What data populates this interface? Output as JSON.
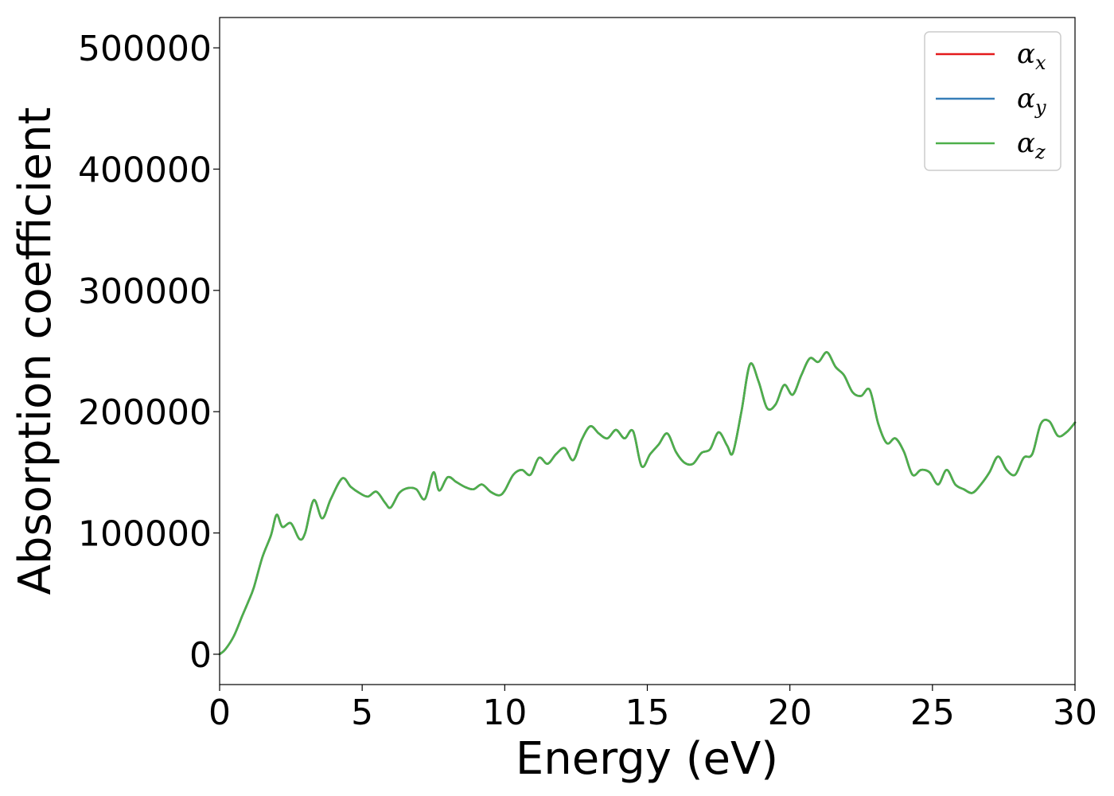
{
  "chart_data": {
    "type": "line",
    "xlabel": "Energy (eV)",
    "ylabel": "Absorption coefficient",
    "xlim": [
      0,
      30
    ],
    "ylim": [
      -25000,
      525000
    ],
    "xticks": [
      0,
      5,
      10,
      15,
      20,
      25,
      30
    ],
    "yticks": [
      0,
      100000,
      200000,
      300000,
      400000,
      500000
    ],
    "xtick_labels": [
      "0",
      "5",
      "10",
      "15",
      "20",
      "25",
      "30"
    ],
    "ytick_labels": [
      "0",
      "100000",
      "200000",
      "300000",
      "400000",
      "500000"
    ],
    "grid": false,
    "legend_position": "top-right",
    "x": [
      0,
      0.2,
      0.5,
      0.8,
      1.0,
      1.2,
      1.5,
      1.8,
      2.0,
      2.2,
      2.5,
      2.8,
      3.0,
      3.3,
      3.6,
      3.9,
      4.3,
      4.6,
      4.9,
      5.2,
      5.5,
      5.8,
      6.0,
      6.3,
      6.6,
      6.9,
      7.2,
      7.5,
      7.7,
      8.0,
      8.3,
      8.6,
      8.9,
      9.2,
      9.5,
      9.8,
      10.0,
      10.3,
      10.6,
      10.9,
      11.2,
      11.5,
      11.8,
      12.1,
      12.4,
      12.7,
      13.0,
      13.3,
      13.6,
      13.9,
      14.2,
      14.5,
      14.8,
      15.1,
      15.4,
      15.7,
      16.0,
      16.3,
      16.6,
      16.9,
      17.2,
      17.5,
      17.8,
      18.0,
      18.3,
      18.6,
      18.9,
      19.2,
      19.5,
      19.8,
      20.1,
      20.4,
      20.7,
      21.0,
      21.3,
      21.6,
      21.9,
      22.2,
      22.5,
      22.8,
      23.1,
      23.4,
      23.7,
      24.0,
      24.3,
      24.6,
      24.9,
      25.2,
      25.5,
      25.8,
      26.1,
      26.4,
      26.7,
      27.0,
      27.3,
      27.6,
      27.9,
      28.2,
      28.5,
      28.8,
      29.1,
      29.4,
      29.7,
      30.0
    ],
    "series": [
      {
        "name": "α",
        "subscript": "x",
        "color": "#e41a1c",
        "values": [
          0,
          4000,
          15000,
          32000,
          43000,
          55000,
          80000,
          98000,
          115000,
          105000,
          108000,
          95000,
          100000,
          127000,
          112000,
          128000,
          145000,
          138000,
          133000,
          130000,
          134000,
          125000,
          121000,
          133000,
          137000,
          136000,
          128000,
          150000,
          135000,
          146000,
          142000,
          138000,
          136000,
          140000,
          134000,
          131000,
          135000,
          148000,
          152000,
          148000,
          162000,
          157000,
          165000,
          170000,
          160000,
          177000,
          188000,
          182000,
          178000,
          185000,
          178000,
          184000,
          155000,
          165000,
          173000,
          182000,
          167000,
          158000,
          157000,
          166000,
          169000,
          183000,
          172000,
          166000,
          200000,
          239000,
          225000,
          203000,
          206000,
          222000,
          214000,
          230000,
          244000,
          241000,
          249000,
          237000,
          230000,
          216000,
          213000,
          218000,
          190000,
          174000,
          178000,
          167000,
          148000,
          152000,
          150000,
          140000,
          152000,
          140000,
          136000,
          133000,
          140000,
          150000,
          163000,
          152000,
          148000,
          162000,
          165000,
          190000,
          192000,
          180000,
          183000,
          191000
        ]
      },
      {
        "name": "α",
        "subscript": "y",
        "color": "#377eb8",
        "values": [
          0,
          4000,
          15000,
          32000,
          43000,
          55000,
          80000,
          98000,
          115000,
          105000,
          108000,
          95000,
          100000,
          127000,
          112000,
          128000,
          145000,
          138000,
          133000,
          130000,
          134000,
          125000,
          121000,
          133000,
          137000,
          136000,
          128000,
          150000,
          135000,
          146000,
          142000,
          138000,
          136000,
          140000,
          134000,
          131000,
          135000,
          148000,
          152000,
          148000,
          162000,
          157000,
          165000,
          170000,
          160000,
          177000,
          188000,
          182000,
          178000,
          185000,
          178000,
          184000,
          155000,
          165000,
          173000,
          182000,
          167000,
          158000,
          157000,
          166000,
          169000,
          183000,
          172000,
          166000,
          200000,
          239000,
          225000,
          203000,
          206000,
          222000,
          214000,
          230000,
          244000,
          241000,
          249000,
          237000,
          230000,
          216000,
          213000,
          218000,
          190000,
          174000,
          178000,
          167000,
          148000,
          152000,
          150000,
          140000,
          152000,
          140000,
          136000,
          133000,
          140000,
          150000,
          163000,
          152000,
          148000,
          162000,
          165000,
          190000,
          192000,
          180000,
          183000,
          191000
        ]
      },
      {
        "name": "α",
        "subscript": "z",
        "color": "#4daf4a",
        "values": [
          0,
          4000,
          15000,
          32000,
          43000,
          55000,
          80000,
          98000,
          115000,
          105000,
          108000,
          95000,
          100000,
          127000,
          112000,
          128000,
          145000,
          138000,
          133000,
          130000,
          134000,
          125000,
          121000,
          133000,
          137000,
          136000,
          128000,
          150000,
          135000,
          146000,
          142000,
          138000,
          136000,
          140000,
          134000,
          131000,
          135000,
          148000,
          152000,
          148000,
          162000,
          157000,
          165000,
          170000,
          160000,
          177000,
          188000,
          182000,
          178000,
          185000,
          178000,
          184000,
          155000,
          165000,
          173000,
          182000,
          167000,
          158000,
          157000,
          166000,
          169000,
          183000,
          172000,
          166000,
          200000,
          239000,
          225000,
          203000,
          206000,
          222000,
          214000,
          230000,
          244000,
          241000,
          249000,
          237000,
          230000,
          216000,
          213000,
          218000,
          190000,
          174000,
          178000,
          167000,
          148000,
          152000,
          150000,
          140000,
          152000,
          140000,
          136000,
          133000,
          140000,
          150000,
          163000,
          152000,
          148000,
          162000,
          165000,
          190000,
          192000,
          180000,
          183000,
          191000
        ]
      }
    ]
  }
}
